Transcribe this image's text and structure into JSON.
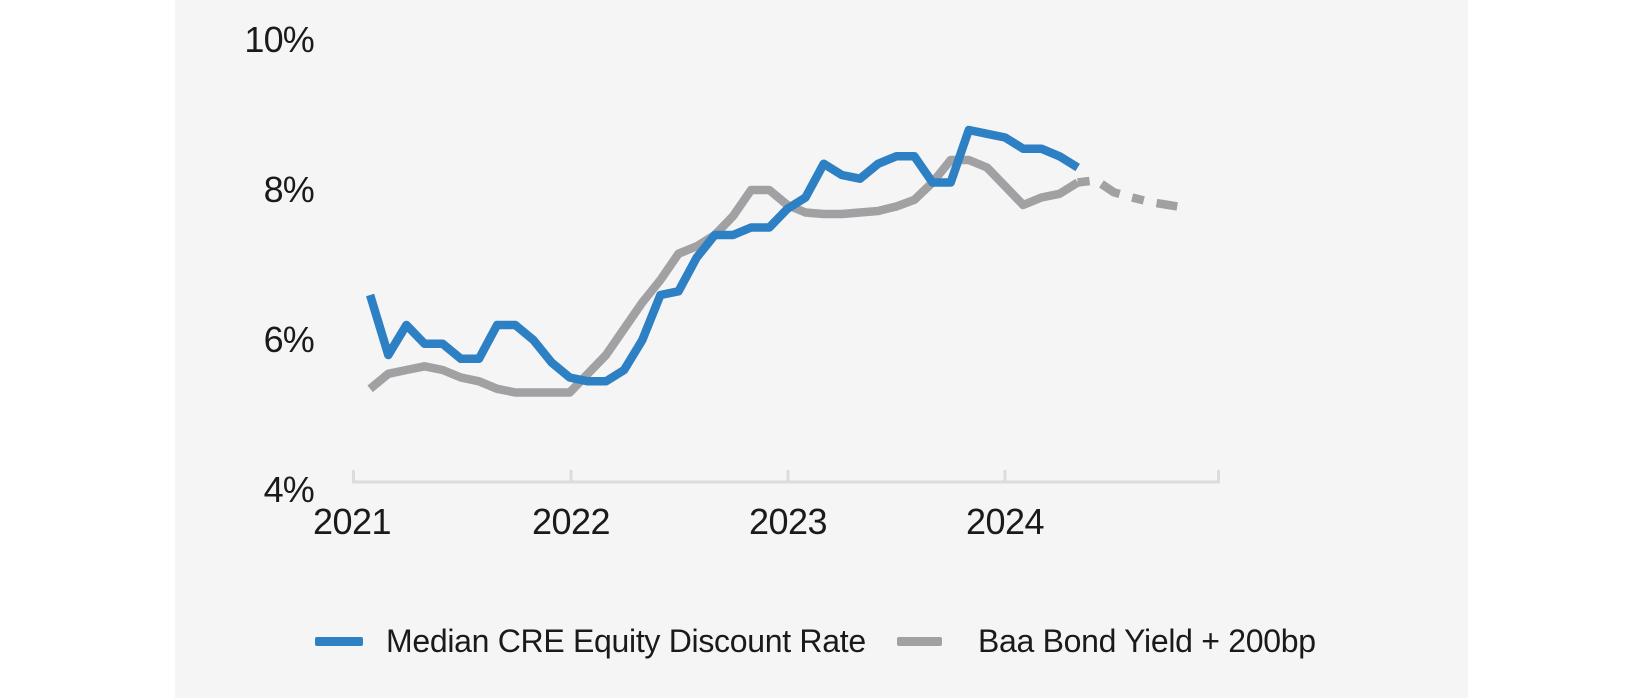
{
  "page": {
    "background": "#ffffff",
    "panel_background": "#f5f5f6",
    "text_color": "#1a1a1a",
    "axis_color": "#dcdcdc"
  },
  "chart_data": {
    "type": "line",
    "title": "",
    "xlabel": "",
    "ylabel": "",
    "y_tick_labels": [
      "10%",
      "8%",
      "6%",
      "4%"
    ],
    "y_tick_values": [
      10,
      8,
      6,
      4
    ],
    "x_tick_labels": [
      "2021",
      "2022",
      "2023",
      "2024"
    ],
    "ylim": [
      4,
      10
    ],
    "xlim_years": [
      2021,
      2025
    ],
    "grid": "off",
    "legend_position": "bottom",
    "x_axis_unit": "monthly points; month_index 0 = Jan 2021",
    "series": [
      {
        "name": "Baa Bond Yield + 200bp",
        "slug": "baa-bond-yield-line",
        "color": "#a1a1a3",
        "style": "solid",
        "start_month_index": 1,
        "values": [
          5.35,
          5.55,
          5.6,
          5.65,
          5.6,
          5.5,
          5.45,
          5.35,
          5.3,
          5.3,
          5.3,
          5.3,
          5.55,
          5.8,
          6.15,
          6.5,
          6.8,
          7.15,
          7.25,
          7.4,
          7.65,
          8.0,
          8.0,
          7.8,
          7.7,
          7.68,
          7.68,
          7.7,
          7.72,
          7.78,
          7.87,
          8.1,
          8.4,
          8.4,
          8.3,
          8.05,
          7.8,
          7.9,
          7.95,
          8.1
        ]
      },
      {
        "name": "Baa Bond Yield + 200bp (dashed projection)",
        "slug": "baa-bond-yield-projection-line",
        "color": "#a1a1a3",
        "style": "dashed",
        "start_month_index": 40,
        "values": [
          8.1,
          8.13,
          7.97,
          7.9,
          7.84,
          7.8,
          7.76
        ]
      },
      {
        "name": "Median CRE Equity Discount Rate",
        "slug": "median-cre-discount-rate-line",
        "color": "#2c80c3",
        "style": "solid",
        "start_month_index": 1,
        "values": [
          6.6,
          5.8,
          6.2,
          5.95,
          5.95,
          5.75,
          5.75,
          6.2,
          6.2,
          6.0,
          5.7,
          5.5,
          5.45,
          5.45,
          5.6,
          6.0,
          6.6,
          6.65,
          7.1,
          7.4,
          7.4,
          7.5,
          7.5,
          7.75,
          7.9,
          8.35,
          8.2,
          8.15,
          8.35,
          8.45,
          8.45,
          8.1,
          8.1,
          8.8,
          8.75,
          8.7,
          8.55,
          8.55,
          8.45,
          8.3
        ]
      }
    ]
  },
  "legend": [
    {
      "label": "Median CRE Equity Discount Rate",
      "color": "#2c80c3"
    },
    {
      "label": "Baa Bond Yield + 200bp",
      "color": "#a1a1a3"
    }
  ]
}
